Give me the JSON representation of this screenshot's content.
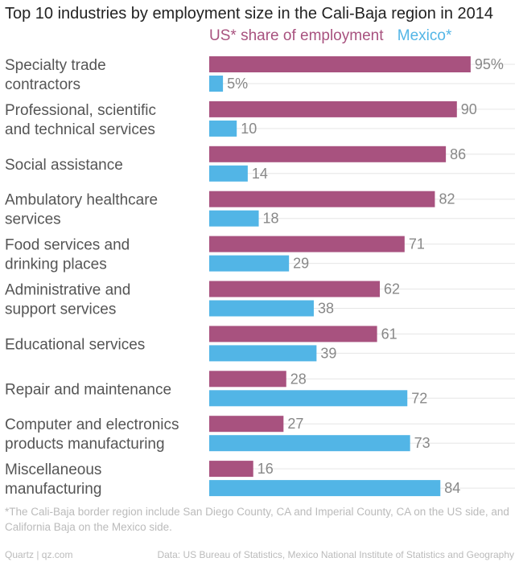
{
  "colors": {
    "us": "#a8527f",
    "mexico": "#52b5e6",
    "grid": "#e6e6e6"
  },
  "chart_data": {
    "type": "bar",
    "orientation": "horizontal",
    "title": "Top 10 industries by employment size in the Cali-Baja region in 2014",
    "legend_position": "top",
    "xlim": [
      0,
      100
    ],
    "grid": true,
    "categories": [
      [
        "Specialty trade",
        "contractors"
      ],
      [
        "Professional, scientific",
        "and technical services"
      ],
      [
        "Social assistance"
      ],
      [
        "Ambulatory healthcare",
        "services"
      ],
      [
        "Food services and",
        "drinking places"
      ],
      [
        "Administrative and",
        "support services"
      ],
      [
        "Educational services"
      ],
      [
        "Repair and maintenance"
      ],
      [
        "Computer and electronics",
        "products manufacturing"
      ],
      [
        "Miscellaneous",
        "manufacturing"
      ]
    ],
    "series": [
      {
        "name": "US* share of employment",
        "color_key": "us",
        "values": [
          95,
          90,
          86,
          82,
          71,
          62,
          61,
          28,
          27,
          16
        ],
        "labels": [
          "95%",
          "90",
          "86",
          "82",
          "71",
          "62",
          "61",
          "28",
          "27",
          "16"
        ]
      },
      {
        "name": "Mexico*",
        "color_key": "mexico",
        "values": [
          5,
          10,
          14,
          18,
          29,
          38,
          39,
          72,
          73,
          84
        ],
        "labels": [
          "5%",
          "10",
          "14",
          "18",
          "29",
          "38",
          "39",
          "72",
          "73",
          "84"
        ]
      }
    ]
  },
  "footnote": "*The Cali-Baja border region include San Diego County, CA and Imperial County, CA on the US side, and California Baja on the Mexico side.",
  "source_left": "Quartz | qz.com",
  "source_right": "Data: US Bureau of Statistics, Mexico National Institute of Statistics and Geography"
}
